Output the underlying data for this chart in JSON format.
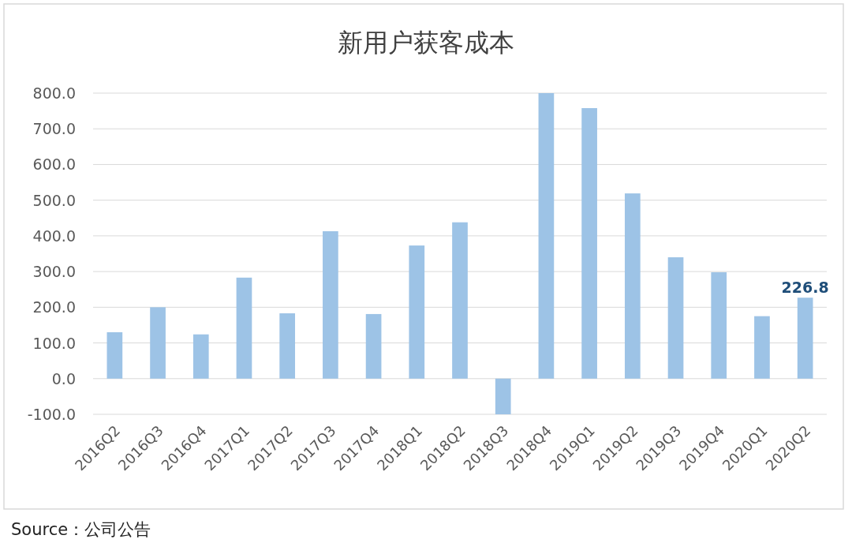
{
  "chart_data": {
    "type": "bar",
    "title": "新用户获客成本",
    "categories": [
      "2016Q2",
      "2016Q3",
      "2016Q4",
      "2017Q1",
      "2017Q2",
      "2017Q3",
      "2017Q4",
      "2018Q1",
      "2018Q2",
      "2018Q3",
      "2018Q4",
      "2019Q1",
      "2019Q2",
      "2019Q3",
      "2019Q4",
      "2020Q1",
      "2020Q2"
    ],
    "values": [
      130,
      200,
      124,
      283,
      183,
      413,
      181,
      373,
      438,
      -100,
      800,
      758,
      519,
      340,
      298,
      175,
      226.8
    ],
    "value_labels": [
      null,
      null,
      null,
      null,
      null,
      null,
      null,
      null,
      null,
      null,
      null,
      null,
      null,
      null,
      null,
      null,
      "226.8"
    ],
    "color": "#9dc3e6",
    "ylim": [
      -100,
      800
    ],
    "yticks": [
      {
        "value": -100,
        "label": "-100.0"
      },
      {
        "value": 0,
        "label": "0.0"
      },
      {
        "value": 100,
        "label": "100.0"
      },
      {
        "value": 200,
        "label": "200.0"
      },
      {
        "value": 300,
        "label": "300.0"
      },
      {
        "value": 400,
        "label": "400.0"
      },
      {
        "value": 500,
        "label": "500.0"
      },
      {
        "value": 600,
        "label": "600.0"
      },
      {
        "value": 700,
        "label": "700.0"
      },
      {
        "value": 800,
        "label": "800.0"
      }
    ],
    "grid": "y",
    "annotations": [
      "Source：公司公告"
    ]
  }
}
